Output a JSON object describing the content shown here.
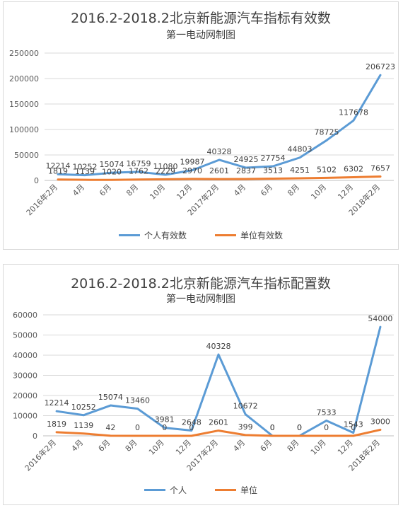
{
  "chart_data": [
    {
      "type": "line",
      "title": "2016.2-2018.2北京新能源汽车指标有效数",
      "subtitle": "第一电动网制图",
      "categories": [
        "2016年2月",
        "4月",
        "6月",
        "8月",
        "10月",
        "12月",
        "2017年2月",
        "4月",
        "6月",
        "8月",
        "10月",
        "12月",
        "2018年2月"
      ],
      "series": [
        {
          "name": "个人有效数",
          "color": "#5b9bd5",
          "values": [
            12214,
            10252,
            15074,
            16759,
            11080,
            19987,
            40328,
            24925,
            27754,
            44803,
            78725,
            117678,
            206723
          ]
        },
        {
          "name": "单位有效数",
          "color": "#ed7d31",
          "values": [
            1819,
            1139,
            1020,
            1762,
            2229,
            2970,
            2601,
            2837,
            3513,
            4251,
            5102,
            6302,
            7657
          ]
        }
      ],
      "ylim": [
        0,
        250000
      ],
      "yticks": [
        0,
        50000,
        100000,
        150000,
        200000,
        250000
      ],
      "grid": true,
      "legend": "bottom"
    },
    {
      "type": "line",
      "title": "2016.2-2018.2北京新能源汽车指标配置数",
      "subtitle": "第一电动网制图",
      "categories": [
        "2016年2月",
        "4月",
        "6月",
        "8月",
        "10月",
        "12月",
        "2017年2月",
        "4月",
        "6月",
        "8月",
        "10月",
        "12月",
        "2018年2月"
      ],
      "series": [
        {
          "name": "个人",
          "color": "#5b9bd5",
          "values": [
            12214,
            10252,
            15074,
            13460,
            3981,
            2648,
            40328,
            10672,
            0,
            0,
            7533,
            1543,
            54000
          ]
        },
        {
          "name": "单位",
          "color": "#ed7d31",
          "values": [
            1819,
            1139,
            42,
            0,
            0,
            0,
            2601,
            399,
            0,
            0,
            0,
            0,
            3000
          ]
        }
      ],
      "ylim": [
        0,
        60000
      ],
      "yticks": [
        0,
        10000,
        20000,
        30000,
        40000,
        50000,
        60000
      ],
      "grid": true,
      "legend": "bottom"
    }
  ]
}
